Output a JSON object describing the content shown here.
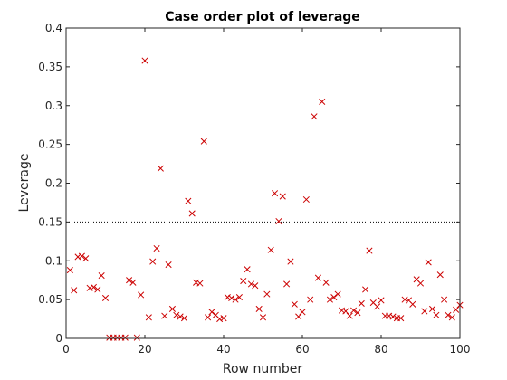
{
  "chart_data": {
    "type": "scatter",
    "title": "Case order plot of leverage",
    "xlabel": "Row number",
    "ylabel": "Leverage",
    "xlim": [
      0,
      100
    ],
    "ylim": [
      0,
      0.4
    ],
    "xticks": [
      0,
      20,
      40,
      60,
      80,
      100
    ],
    "yticks": [
      0,
      0.05,
      0.1,
      0.15,
      0.2,
      0.25,
      0.3,
      0.35,
      0.4
    ],
    "xtick_labels": [
      "0",
      "20",
      "40",
      "60",
      "80",
      "100"
    ],
    "ytick_labels": [
      "0",
      "0.05",
      "0.1",
      "0.15",
      "0.2",
      "0.25",
      "0.3",
      "0.35",
      "0.4"
    ],
    "grid": false,
    "marker": "x",
    "marker_color": "#cc0000",
    "reference_line": {
      "y": 0.15,
      "style": "dotted"
    },
    "x": [
      1,
      2,
      3,
      4,
      5,
      6,
      7,
      8,
      9,
      10,
      11,
      12,
      13,
      14,
      15,
      16,
      17,
      18,
      19,
      20,
      21,
      22,
      23,
      24,
      25,
      26,
      27,
      28,
      29,
      30,
      31,
      32,
      33,
      34,
      35,
      36,
      37,
      38,
      39,
      40,
      41,
      42,
      43,
      44,
      45,
      46,
      47,
      48,
      49,
      50,
      51,
      52,
      53,
      54,
      55,
      56,
      57,
      58,
      59,
      60,
      61,
      62,
      63,
      64,
      65,
      66,
      67,
      68,
      69,
      70,
      71,
      72,
      73,
      74,
      75,
      76,
      77,
      78,
      79,
      80,
      81,
      82,
      83,
      84,
      85,
      86,
      87,
      88,
      89,
      90,
      91,
      92,
      93,
      94,
      95,
      96,
      97,
      98,
      99,
      100
    ],
    "y": [
      0.088,
      0.062,
      0.105,
      0.106,
      0.103,
      0.065,
      0.066,
      0.063,
      0.081,
      0.052,
      0.001,
      0.001,
      0.001,
      0.001,
      0.001,
      0.075,
      0.072,
      0.001,
      0.056,
      0.358,
      0.027,
      0.099,
      0.116,
      0.219,
      0.029,
      0.095,
      0.038,
      0.03,
      0.028,
      0.026,
      0.177,
      0.161,
      0.072,
      0.071,
      0.254,
      0.027,
      0.034,
      0.03,
      0.025,
      0.026,
      0.053,
      0.052,
      0.05,
      0.053,
      0.074,
      0.089,
      0.07,
      0.068,
      0.038,
      0.027,
      0.057,
      0.114,
      0.187,
      0.151,
      0.183,
      0.07,
      0.099,
      0.044,
      0.028,
      0.034,
      0.179,
      0.05,
      0.286,
      0.078,
      0.305,
      0.072,
      0.05,
      0.053,
      0.057,
      0.036,
      0.035,
      0.029,
      0.036,
      0.033,
      0.045,
      0.063,
      0.113,
      0.046,
      0.041,
      0.049,
      0.029,
      0.029,
      0.028,
      0.026,
      0.026,
      0.05,
      0.049,
      0.044,
      0.076,
      0.071,
      0.035,
      0.098,
      0.038,
      0.03,
      0.082,
      0.05,
      0.03,
      0.027,
      0.037,
      0.043
    ]
  }
}
